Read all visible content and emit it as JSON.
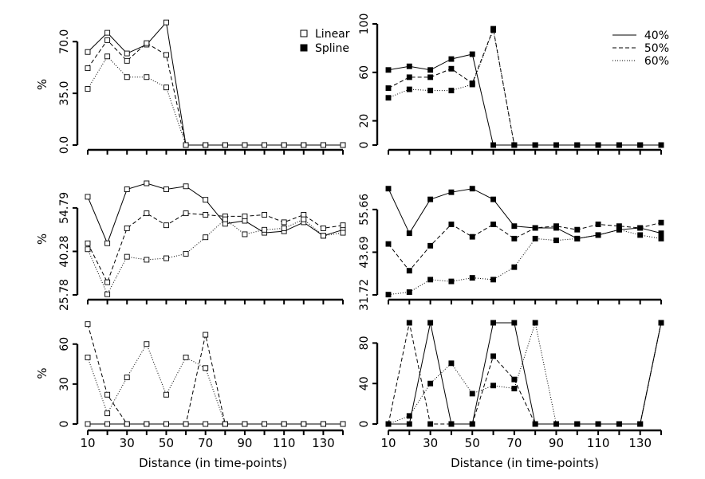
{
  "chart_data": [
    {
      "id": "p1",
      "type": "line",
      "marker": "linear",
      "ylabel": "%",
      "yticks": [
        0,
        35,
        70
      ],
      "ytick_labels": [
        "0.0",
        "35.0",
        "70.0"
      ],
      "ylim": [
        0,
        82
      ],
      "xlim": [
        10,
        140
      ],
      "series": [
        {
          "name": "40%",
          "style": "solid",
          "x": [
            10,
            20,
            30,
            40,
            50,
            60,
            70,
            80,
            90,
            100,
            110,
            120,
            130,
            140
          ],
          "y": [
            63,
            76,
            62,
            68,
            83,
            0,
            0,
            0,
            0,
            0,
            0,
            0,
            0,
            0
          ]
        },
        {
          "name": "50%",
          "style": "dashed",
          "x": [
            10,
            20,
            30,
            40,
            50,
            60,
            70,
            80,
            90,
            100,
            110,
            120,
            130,
            140
          ],
          "y": [
            52,
            71,
            57,
            69,
            61,
            0,
            0,
            0,
            0,
            0,
            0,
            0,
            0,
            0
          ]
        },
        {
          "name": "60%",
          "style": "dotted",
          "x": [
            10,
            20,
            30,
            40,
            50,
            60,
            70,
            80,
            90,
            100,
            110,
            120,
            130,
            140
          ],
          "y": [
            38,
            60,
            46,
            46,
            39,
            0,
            0,
            0,
            0,
            0,
            0,
            0,
            0,
            0
          ]
        }
      ]
    },
    {
      "id": "p2",
      "type": "line",
      "marker": "spline",
      "ylabel": "",
      "yticks": [
        0,
        20,
        60,
        100
      ],
      "ytick_labels": [
        "0",
        "20",
        "60",
        "100"
      ],
      "ylim": [
        0,
        100
      ],
      "xlim": [
        10,
        140
      ],
      "series": [
        {
          "name": "40%",
          "style": "solid",
          "x": [
            10,
            20,
            30,
            40,
            50,
            60,
            70,
            80,
            90,
            100,
            110,
            120,
            130,
            140
          ],
          "y": [
            62,
            65,
            62,
            71,
            75,
            0,
            0,
            0,
            0,
            0,
            0,
            0,
            0,
            0
          ]
        },
        {
          "name": "50%",
          "style": "dashed",
          "x": [
            10,
            20,
            30,
            40,
            50,
            60,
            70,
            80,
            90,
            100,
            110,
            120,
            130,
            140
          ],
          "y": [
            47,
            56,
            56,
            63,
            51,
            96,
            0,
            0,
            0,
            0,
            0,
            0,
            0,
            0
          ]
        },
        {
          "name": "60%",
          "style": "dotted",
          "x": [
            10,
            20,
            30,
            40,
            50,
            60,
            70,
            80,
            90,
            100,
            110,
            120,
            130,
            140
          ],
          "y": [
            39,
            46,
            45,
            45,
            50,
            95,
            0,
            0,
            0,
            0,
            0,
            0,
            0,
            0
          ]
        }
      ]
    },
    {
      "id": "p3",
      "type": "line",
      "marker": "linear",
      "ylabel": "%",
      "yticks": [
        25.78,
        40.28,
        54.79
      ],
      "ytick_labels": [
        "25.78",
        "40.28",
        "54.79"
      ],
      "ylim": [
        25.78,
        63
      ],
      "xlim": [
        10,
        140
      ],
      "series": [
        {
          "name": "40%",
          "style": "solid",
          "x": [
            10,
            20,
            30,
            40,
            50,
            60,
            70,
            80,
            90,
            100,
            110,
            120,
            130,
            140
          ],
          "y": [
            58.5,
            43,
            61,
            63,
            61,
            62,
            57.5,
            49.5,
            50.5,
            46.5,
            47,
            50,
            45.5,
            47.5
          ]
        },
        {
          "name": "50%",
          "style": "dashed",
          "x": [
            10,
            20,
            30,
            40,
            50,
            60,
            70,
            80,
            90,
            100,
            110,
            120,
            130,
            140
          ],
          "y": [
            43,
            30,
            48,
            53,
            49,
            53,
            52.5,
            52,
            52,
            52.5,
            50,
            52.5,
            48,
            49
          ]
        },
        {
          "name": "60%",
          "style": "dotted",
          "x": [
            10,
            20,
            30,
            40,
            50,
            60,
            70,
            80,
            90,
            100,
            110,
            120,
            130,
            140
          ],
          "y": [
            41,
            26,
            38.5,
            37.5,
            38,
            39.5,
            45,
            51,
            46,
            47.5,
            48,
            51,
            45.5,
            46.5
          ]
        }
      ]
    },
    {
      "id": "p4",
      "type": "line",
      "marker": "spline",
      "ylabel": "",
      "yticks": [
        31.72,
        43.69,
        55.66
      ],
      "ytick_labels": [
        "31.72",
        "43.69",
        "55.66"
      ],
      "ylim": [
        31.72,
        63
      ],
      "xlim": [
        10,
        140
      ],
      "series": [
        {
          "name": "40%",
          "style": "solid",
          "x": [
            10,
            20,
            30,
            40,
            50,
            60,
            70,
            80,
            90,
            100,
            110,
            120,
            130,
            140
          ],
          "y": [
            61.5,
            49,
            58.5,
            60.5,
            61.5,
            58.5,
            51,
            50.5,
            50.5,
            47.5,
            48.5,
            50,
            50.5,
            49
          ]
        },
        {
          "name": "50%",
          "style": "dashed",
          "x": [
            10,
            20,
            30,
            40,
            50,
            60,
            70,
            80,
            90,
            100,
            110,
            120,
            130,
            140
          ],
          "y": [
            46,
            38.5,
            45.5,
            51.5,
            48,
            51.5,
            47.5,
            50.5,
            51,
            50,
            51.5,
            51,
            50.5,
            52
          ]
        },
        {
          "name": "60%",
          "style": "dotted",
          "x": [
            10,
            20,
            30,
            40,
            50,
            60,
            70,
            80,
            90,
            100,
            110,
            120,
            130,
            140
          ],
          "y": [
            31.8,
            32.5,
            36,
            35.5,
            36.5,
            36,
            39.5,
            47.5,
            47,
            47.5,
            48.5,
            50,
            48.5,
            47.5
          ]
        }
      ]
    },
    {
      "id": "p5",
      "type": "line",
      "marker": "linear",
      "ylabel": "%",
      "yticks": [
        0,
        30,
        60
      ],
      "ytick_labels": [
        "0",
        "30",
        "60"
      ],
      "ylim": [
        0,
        76
      ],
      "xlim": [
        10,
        140
      ],
      "series": [
        {
          "name": "40%",
          "style": "solid",
          "x": [
            10,
            20,
            30,
            40,
            50,
            60,
            70,
            80,
            90,
            100,
            110,
            120,
            130,
            140
          ],
          "y": [
            0,
            0,
            0,
            0,
            0,
            0,
            0,
            0,
            0,
            0,
            0,
            0,
            0,
            0
          ]
        },
        {
          "name": "50%",
          "style": "dashed",
          "x": [
            10,
            20,
            30,
            40,
            50,
            60,
            70,
            80,
            90,
            100,
            110,
            120,
            130,
            140
          ],
          "y": [
            75,
            22,
            0,
            0,
            0,
            0,
            67,
            0,
            0,
            0,
            0,
            0,
            0,
            0
          ]
        },
        {
          "name": "60%",
          "style": "dotted",
          "x": [
            10,
            20,
            30,
            40,
            50,
            60,
            70,
            80,
            90,
            100,
            110,
            120,
            130,
            140
          ],
          "y": [
            50,
            8,
            35,
            60,
            22,
            50,
            42,
            0,
            0,
            0,
            0,
            0,
            0,
            0
          ]
        }
      ]
    },
    {
      "id": "p6",
      "type": "line",
      "marker": "spline",
      "ylabel": "",
      "yticks": [
        0,
        40,
        80
      ],
      "ytick_labels": [
        "0",
        "40",
        "80"
      ],
      "ylim": [
        0,
        100
      ],
      "xlim": [
        10,
        140
      ],
      "series": [
        {
          "name": "40%",
          "style": "solid",
          "x": [
            10,
            20,
            30,
            40,
            50,
            60,
            70,
            80,
            90,
            100,
            110,
            120,
            130,
            140
          ],
          "y": [
            0,
            0,
            100,
            0,
            0,
            100,
            100,
            0,
            0,
            0,
            0,
            0,
            0,
            100
          ]
        },
        {
          "name": "50%",
          "style": "dashed",
          "x": [
            10,
            20,
            30,
            40,
            50,
            60,
            70,
            80,
            90,
            100,
            110,
            120,
            130,
            140
          ],
          "y": [
            0,
            100,
            0,
            0,
            0,
            67,
            44,
            0,
            0,
            0,
            0,
            0,
            0,
            100
          ]
        },
        {
          "name": "60%",
          "style": "dotted",
          "x": [
            10,
            20,
            30,
            40,
            50,
            60,
            70,
            80,
            90,
            100,
            110,
            120,
            130,
            140
          ],
          "y": [
            0,
            8,
            40,
            60,
            30,
            38,
            35,
            100,
            0,
            0,
            0,
            0,
            0,
            100
          ]
        }
      ]
    }
  ],
  "x_ticks": [
    10,
    20,
    30,
    40,
    50,
    60,
    70,
    80,
    90,
    100,
    110,
    120,
    130,
    140
  ],
  "x_tick_labels": [
    "10",
    "30",
    "50",
    "70",
    "90",
    "110",
    "130"
  ],
  "xlabel": "Distance (in time-points)",
  "legend_markers": {
    "linear": "Linear",
    "spline": "Spline"
  },
  "legend_lines": {
    "items": [
      {
        "label": "40%",
        "style": "solid"
      },
      {
        "label": "50%",
        "style": "dashed"
      },
      {
        "label": "60%",
        "style": "dotted"
      }
    ]
  }
}
